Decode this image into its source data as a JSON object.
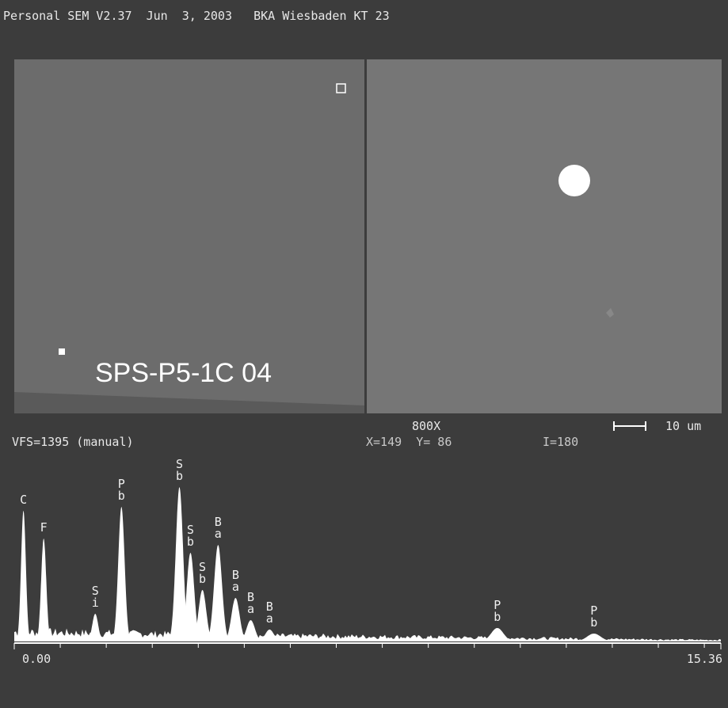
{
  "header": {
    "title": "Personal SEM V2.37  Jun  3, 2003   BKA Wiesbaden KT 23"
  },
  "image": {
    "label": "SPS-P5-1C 04"
  },
  "status": {
    "magnification": "800X",
    "scale": "10 um",
    "vfs": "VFS=1395 (manual)",
    "position": "X=149  Y= 86",
    "intensity": "I=180"
  },
  "chart_data": {
    "type": "spectrum",
    "xlim": [
      0,
      15.36
    ],
    "ylim": [
      0,
      1395
    ],
    "xticks": [
      {
        "value": 0,
        "label": "0.00"
      },
      15.36
    ],
    "minor_xticks": [
      1,
      2,
      3,
      4,
      5,
      6,
      7,
      8,
      9,
      10,
      11,
      12,
      13,
      14,
      15
    ],
    "peaks": [
      {
        "label": "C",
        "energy": 0.2,
        "height": 1096
      },
      {
        "label": "F",
        "energy": 0.64,
        "height": 863
      },
      {
        "label": "Si",
        "energy": 1.76,
        "height": 232
      },
      {
        "label": "Pb",
        "energy": 2.33,
        "height": 1129
      },
      {
        "label": "Sb",
        "energy": 3.59,
        "height": 1295
      },
      {
        "label": "Sb",
        "energy": 3.83,
        "height": 744
      },
      {
        "label": "Sb",
        "energy": 4.09,
        "height": 432
      },
      {
        "label": "Ba",
        "energy": 4.43,
        "height": 810
      },
      {
        "label": "Ba",
        "energy": 4.81,
        "height": 365
      },
      {
        "label": "Ba",
        "energy": 5.14,
        "height": 179
      },
      {
        "label": "Ba",
        "energy": 5.55,
        "height": 100
      },
      {
        "label": "Pb",
        "energy": 10.5,
        "height": 113
      },
      {
        "label": "Pb",
        "energy": 12.6,
        "height": 66
      }
    ]
  }
}
